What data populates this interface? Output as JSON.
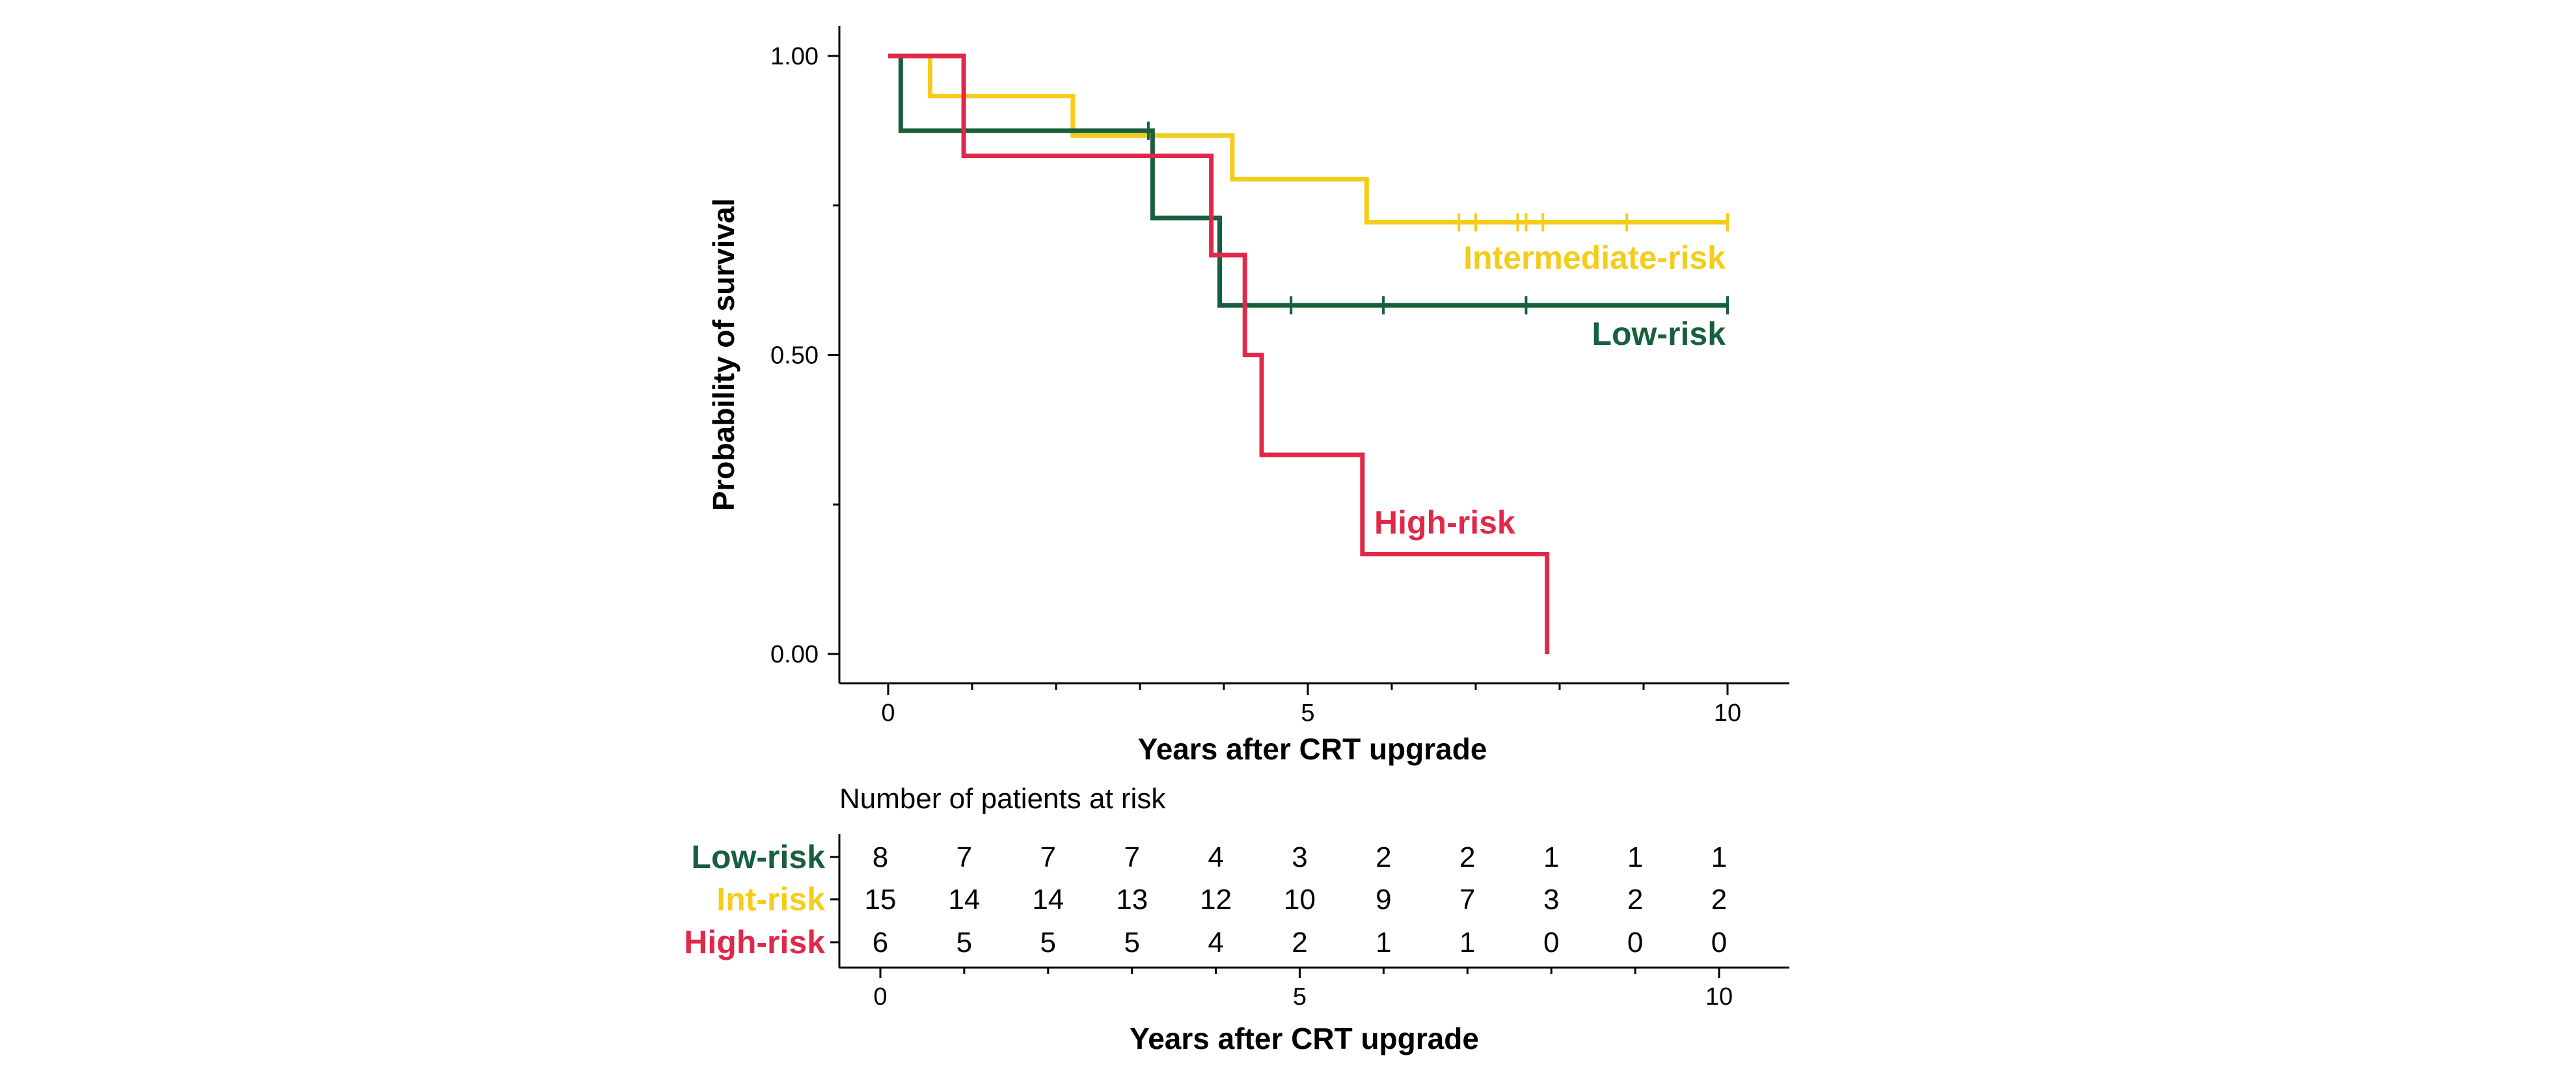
{
  "chart_data": {
    "type": "kaplan-meier",
    "xlabel": "Years after CRT upgrade",
    "ylabel": "Probability of survival",
    "xlim": [
      0,
      10
    ],
    "ylim": [
      0,
      1
    ],
    "xticks": [
      0,
      5,
      10
    ],
    "xtick_labels": [
      "0",
      "5",
      "10"
    ],
    "xminor_ticks": [
      1,
      2,
      3,
      4,
      6,
      7,
      8,
      9
    ],
    "yticks": [
      0,
      0.5,
      1
    ],
    "ytick_labels": [
      "0.00",
      "0.50",
      "1.00"
    ],
    "yminor_ticks": [
      0.25,
      0.75
    ],
    "grid": false,
    "legend": "inline labels next to curves",
    "series": [
      {
        "name": "Intermediate-risk",
        "color": "#F6CC1C",
        "steps": [
          [
            0,
            1.0
          ],
          [
            0.5,
            0.933
          ],
          [
            2.2,
            0.867
          ],
          [
            4.1,
            0.794
          ],
          [
            5.7,
            0.722
          ],
          [
            10.0,
            0.722
          ]
        ],
        "censored": [
          6.8,
          7.0,
          7.5,
          7.6,
          7.8,
          8.8,
          10.0
        ]
      },
      {
        "name": "Low-risk",
        "color": "#175F3D",
        "steps": [
          [
            0,
            1.0
          ],
          [
            0.15,
            0.875
          ],
          [
            3.15,
            0.729
          ],
          [
            3.95,
            0.583
          ],
          [
            10.0,
            0.583
          ]
        ],
        "censored": [
          3.1,
          4.8,
          5.9,
          7.6,
          10.0
        ]
      },
      {
        "name": "High-risk",
        "color": "#E0294A",
        "steps": [
          [
            0,
            1.0
          ],
          [
            0.9,
            0.833
          ],
          [
            3.85,
            0.667
          ],
          [
            4.25,
            0.5
          ],
          [
            4.45,
            0.333
          ],
          [
            5.65,
            0.167
          ],
          [
            7.85,
            0.0
          ]
        ],
        "censored": []
      }
    ],
    "risk_table": {
      "title": "Number of patients at risk",
      "times": [
        0,
        1,
        2,
        3,
        4,
        5,
        6,
        7,
        8,
        9,
        10
      ],
      "xlabel": "Years after CRT upgrade",
      "xtick_labels": [
        "0",
        "5",
        "10"
      ],
      "rows": [
        {
          "label": "Low-risk",
          "color": "#175F3D",
          "values": [
            8,
            7,
            7,
            7,
            4,
            3,
            2,
            2,
            1,
            1,
            1
          ]
        },
        {
          "label": "Int-risk",
          "color": "#F6CC1C",
          "values": [
            15,
            14,
            14,
            13,
            12,
            10,
            9,
            7,
            3,
            2,
            2
          ]
        },
        {
          "label": "High-risk",
          "color": "#E0294A",
          "values": [
            6,
            5,
            5,
            5,
            4,
            2,
            1,
            1,
            0,
            0,
            0
          ]
        }
      ]
    }
  }
}
